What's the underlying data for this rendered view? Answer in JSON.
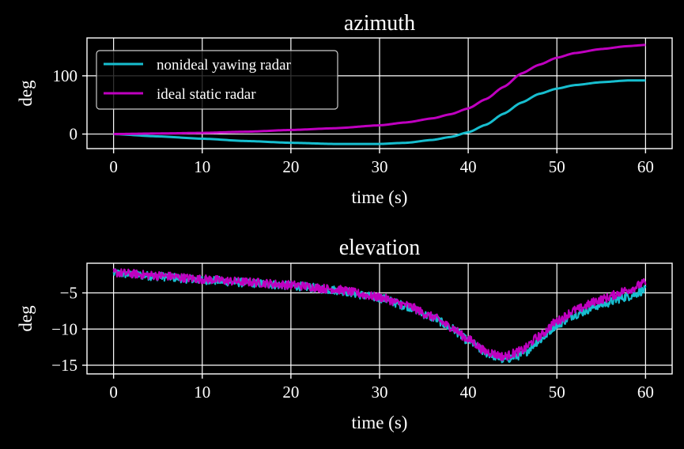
{
  "chart_data": [
    {
      "type": "line",
      "title": "azimuth",
      "xlabel": "time (s)",
      "ylabel": "deg",
      "xlim": [
        -3,
        63
      ],
      "ylim": [
        -25,
        165
      ],
      "xticks": [
        0,
        10,
        20,
        30,
        40,
        50,
        60
      ],
      "yticks": [
        0,
        100
      ],
      "xtick_labels": [
        "0",
        "10",
        "20",
        "30",
        "40",
        "50",
        "60"
      ],
      "ytick_labels": [
        "0",
        "100"
      ],
      "grid": true,
      "legend": {
        "position": "upper-left",
        "entries": [
          "nonideal yawing radar",
          "ideal static radar"
        ]
      },
      "series": [
        {
          "name": "nonideal yawing radar",
          "color": "#17becf",
          "x": [
            0,
            5,
            10,
            15,
            20,
            25,
            30,
            33,
            36,
            38,
            40,
            42,
            44,
            46,
            48,
            50,
            52,
            55,
            58,
            60
          ],
          "y": [
            0,
            -4,
            -8,
            -12,
            -15,
            -17,
            -17,
            -15,
            -10,
            -5,
            3,
            16,
            35,
            54,
            69,
            78,
            84,
            89,
            92,
            92
          ]
        },
        {
          "name": "ideal static radar",
          "color": "#bf00bf",
          "x": [
            0,
            5,
            10,
            15,
            20,
            25,
            30,
            33,
            36,
            38,
            40,
            42,
            44,
            46,
            48,
            50,
            52,
            55,
            58,
            60
          ],
          "y": [
            0,
            1,
            2,
            4,
            7,
            10,
            15,
            20,
            27,
            34,
            44,
            60,
            81,
            104,
            119,
            131,
            139,
            146,
            151,
            153
          ]
        }
      ]
    },
    {
      "type": "line",
      "title": "elevation",
      "xlabel": "time (s)",
      "ylabel": "deg",
      "xlim": [
        -3,
        63
      ],
      "ylim": [
        -16.2,
        -0.9
      ],
      "xticks": [
        0,
        10,
        20,
        30,
        40,
        50,
        60
      ],
      "yticks": [
        -5,
        -10,
        -15
      ],
      "xtick_labels": [
        "0",
        "10",
        "20",
        "30",
        "40",
        "50",
        "60"
      ],
      "ytick_labels": [
        "−5",
        "−10",
        "−15"
      ],
      "grid": true,
      "noise_amplitude_deg": 0.6,
      "series": [
        {
          "name": "nonideal yawing radar",
          "color": "#17becf",
          "x": [
            0,
            5,
            10,
            15,
            20,
            25,
            30,
            33,
            36,
            38,
            40,
            42,
            44,
            46,
            48,
            50,
            52,
            55,
            58,
            60
          ],
          "y": [
            -2.3,
            -2.7,
            -3.2,
            -3.6,
            -4.0,
            -4.6,
            -5.7,
            -6.8,
            -8.4,
            -9.8,
            -11.6,
            -13.3,
            -14.2,
            -13.6,
            -11.6,
            -9.4,
            -8.0,
            -6.6,
            -5.5,
            -4.6
          ]
        },
        {
          "name": "ideal static radar",
          "color": "#bf00bf",
          "x": [
            0,
            5,
            10,
            15,
            20,
            25,
            30,
            33,
            36,
            38,
            40,
            42,
            44,
            46,
            48,
            50,
            52,
            55,
            58,
            60
          ],
          "y": [
            -2.2,
            -2.6,
            -3.1,
            -3.5,
            -3.9,
            -4.5,
            -5.6,
            -6.7,
            -8.3,
            -9.7,
            -11.4,
            -13.1,
            -13.8,
            -13.0,
            -11.0,
            -8.9,
            -7.4,
            -5.9,
            -4.6,
            -3.6
          ]
        }
      ]
    }
  ]
}
